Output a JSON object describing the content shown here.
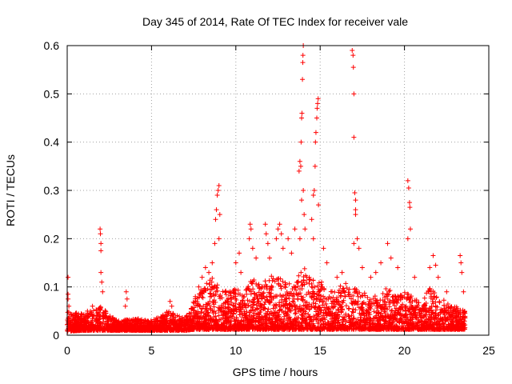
{
  "chart_data": {
    "type": "scatter",
    "title": "Day 345 of 2014, Rate Of TEC Index for receiver vale",
    "xlabel": "GPS time / hours",
    "ylabel": "ROTI / TECUs",
    "xlim": [
      0,
      25
    ],
    "ylim": [
      0,
      0.6
    ],
    "xticks": [
      0,
      5,
      10,
      15,
      20,
      25
    ],
    "yticks": [
      0,
      0.1,
      0.2,
      0.3,
      0.4,
      0.5,
      0.6
    ],
    "xtick_labels": [
      "0",
      "5",
      "10",
      "15",
      "20",
      "25"
    ],
    "ytick_labels": [
      "0",
      "0.1",
      "0.2",
      "0.3",
      "0.4",
      "0.5",
      "0.6"
    ],
    "grid": true,
    "marker": "+",
    "color": "#ff0000",
    "series": [
      {
        "name": "ROTI",
        "points": [
          [
            0.05,
            0.12
          ],
          [
            0.05,
            0.085
          ],
          [
            0.05,
            0.075
          ],
          [
            0.1,
            0.06
          ],
          [
            1.2,
            0.05
          ],
          [
            1.5,
            0.06
          ],
          [
            1.95,
            0.22
          ],
          [
            1.97,
            0.21
          ],
          [
            2.0,
            0.19
          ],
          [
            2.0,
            0.175
          ],
          [
            2.0,
            0.13
          ],
          [
            2.05,
            0.11
          ],
          [
            2.1,
            0.09
          ],
          [
            3.5,
            0.09
          ],
          [
            3.55,
            0.075
          ],
          [
            3.45,
            0.06
          ],
          [
            6.1,
            0.07
          ],
          [
            6.2,
            0.06
          ],
          [
            7.6,
            0.08
          ],
          [
            7.8,
            0.1
          ],
          [
            8.0,
            0.12
          ],
          [
            8.2,
            0.14
          ],
          [
            8.4,
            0.13
          ],
          [
            8.6,
            0.15
          ],
          [
            8.75,
            0.19
          ],
          [
            8.8,
            0.24
          ],
          [
            8.85,
            0.26
          ],
          [
            8.9,
            0.29
          ],
          [
            8.95,
            0.3
          ],
          [
            9.0,
            0.31
          ],
          [
            9.05,
            0.25
          ],
          [
            9.0,
            0.2
          ],
          [
            10.0,
            0.15
          ],
          [
            10.2,
            0.17
          ],
          [
            10.3,
            0.13
          ],
          [
            10.8,
            0.2
          ],
          [
            10.85,
            0.23
          ],
          [
            10.9,
            0.22
          ],
          [
            11.0,
            0.18
          ],
          [
            11.2,
            0.16
          ],
          [
            11.75,
            0.23
          ],
          [
            11.8,
            0.21
          ],
          [
            11.9,
            0.19
          ],
          [
            12.0,
            0.16
          ],
          [
            12.4,
            0.2
          ],
          [
            12.5,
            0.22
          ],
          [
            12.6,
            0.23
          ],
          [
            12.7,
            0.21
          ],
          [
            12.8,
            0.18
          ],
          [
            13.1,
            0.2
          ],
          [
            13.3,
            0.17
          ],
          [
            13.5,
            0.22
          ],
          [
            13.75,
            0.34
          ],
          [
            13.8,
            0.36
          ],
          [
            13.85,
            0.35
          ],
          [
            13.87,
            0.4
          ],
          [
            13.9,
            0.45
          ],
          [
            13.92,
            0.46
          ],
          [
            13.95,
            0.53
          ],
          [
            13.97,
            0.565
          ],
          [
            13.98,
            0.58
          ],
          [
            14.0,
            0.6
          ],
          [
            14.0,
            0.3
          ],
          [
            13.9,
            0.28
          ],
          [
            14.05,
            0.25
          ],
          [
            14.1,
            0.22
          ],
          [
            13.8,
            0.2
          ],
          [
            14.5,
            0.24
          ],
          [
            14.6,
            0.29
          ],
          [
            14.65,
            0.3
          ],
          [
            14.7,
            0.35
          ],
          [
            14.72,
            0.4
          ],
          [
            14.75,
            0.42
          ],
          [
            14.8,
            0.45
          ],
          [
            14.82,
            0.47
          ],
          [
            14.85,
            0.48
          ],
          [
            14.88,
            0.49
          ],
          [
            14.9,
            0.27
          ],
          [
            14.6,
            0.2
          ],
          [
            15.2,
            0.18
          ],
          [
            15.4,
            0.15
          ],
          [
            16.0,
            0.12
          ],
          [
            16.3,
            0.13
          ],
          [
            16.9,
            0.59
          ],
          [
            16.95,
            0.58
          ],
          [
            16.97,
            0.555
          ],
          [
            17.0,
            0.5
          ],
          [
            17.0,
            0.41
          ],
          [
            17.05,
            0.295
          ],
          [
            17.1,
            0.28
          ],
          [
            17.1,
            0.26
          ],
          [
            17.1,
            0.25
          ],
          [
            17.0,
            0.19
          ],
          [
            17.2,
            0.2
          ],
          [
            17.3,
            0.18
          ],
          [
            17.5,
            0.14
          ],
          [
            18.0,
            0.12
          ],
          [
            18.3,
            0.13
          ],
          [
            18.6,
            0.15
          ],
          [
            19.0,
            0.19
          ],
          [
            19.2,
            0.16
          ],
          [
            19.6,
            0.14
          ],
          [
            20.2,
            0.32
          ],
          [
            20.25,
            0.305
          ],
          [
            20.3,
            0.275
          ],
          [
            20.32,
            0.265
          ],
          [
            20.35,
            0.22
          ],
          [
            20.2,
            0.2
          ],
          [
            20.6,
            0.12
          ],
          [
            21.5,
            0.14
          ],
          [
            21.7,
            0.165
          ],
          [
            21.85,
            0.145
          ],
          [
            22.0,
            0.12
          ],
          [
            22.5,
            0.09
          ],
          [
            23.3,
            0.165
          ],
          [
            23.35,
            0.15
          ],
          [
            23.4,
            0.13
          ],
          [
            23.5,
            0.09
          ]
        ],
        "envelope": {
          "x": [
            0,
            1,
            2,
            3,
            4,
            5,
            6,
            7,
            7.5,
            8,
            8.5,
            9,
            9.5,
            10,
            10.5,
            11,
            11.5,
            12,
            12.5,
            13,
            13.5,
            14,
            14.5,
            15,
            15.5,
            16,
            16.5,
            17,
            17.5,
            18,
            18.5,
            19,
            19.5,
            20,
            20.5,
            21,
            21.5,
            22,
            22.5,
            23,
            23.6
          ],
          "upper": [
            0.05,
            0.045,
            0.06,
            0.03,
            0.035,
            0.03,
            0.05,
            0.035,
            0.07,
            0.1,
            0.12,
            0.11,
            0.09,
            0.1,
            0.09,
            0.12,
            0.1,
            0.13,
            0.12,
            0.11,
            0.12,
            0.14,
            0.13,
            0.12,
            0.09,
            0.1,
            0.11,
            0.1,
            0.09,
            0.08,
            0.09,
            0.1,
            0.08,
            0.09,
            0.08,
            0.07,
            0.1,
            0.08,
            0.07,
            0.06,
            0.05
          ],
          "lower": [
            0.008,
            0.01,
            0.01,
            0.01,
            0.01,
            0.01,
            0.01,
            0.01,
            0.012,
            0.012,
            0.012,
            0.012,
            0.012,
            0.012,
            0.012,
            0.012,
            0.012,
            0.012,
            0.012,
            0.012,
            0.012,
            0.012,
            0.012,
            0.012,
            0.012,
            0.012,
            0.012,
            0.012,
            0.012,
            0.012,
            0.012,
            0.012,
            0.012,
            0.012,
            0.012,
            0.012,
            0.012,
            0.012,
            0.012,
            0.012,
            0.012
          ]
        }
      }
    ]
  }
}
